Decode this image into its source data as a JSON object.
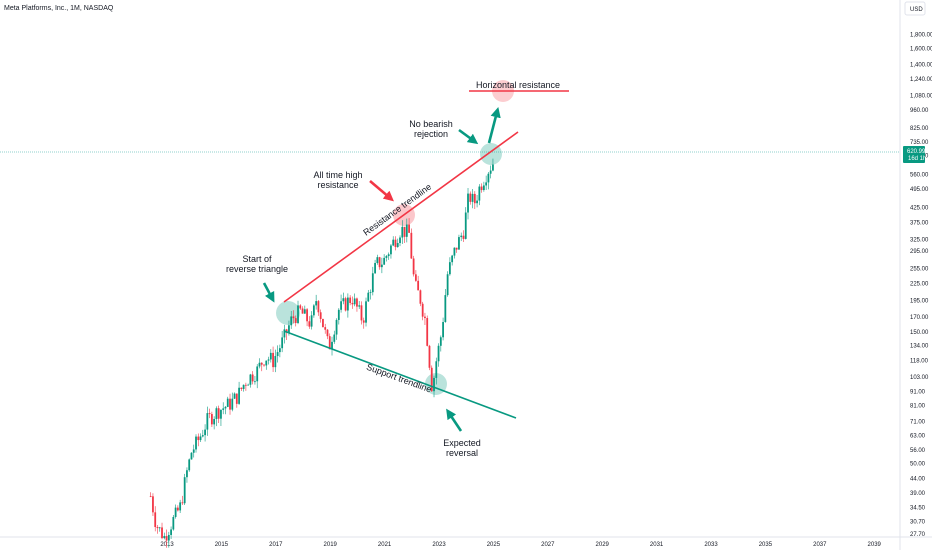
{
  "header": {
    "symbol": "Meta Platforms, Inc., 1M, NASDAQ",
    "currency": "USD"
  },
  "price_tag": {
    "price": "620.99",
    "time": "16d 1h"
  },
  "colors": {
    "up": "#089981",
    "down": "#f23645",
    "red_line": "#f23645",
    "green_line": "#089981",
    "arrow_green": "#089981",
    "arrow_red": "#f23645",
    "price_line": "#26a69a"
  },
  "chart_data": {
    "type": "candlestick",
    "scale": "log",
    "ylim": [
      27.7,
      2000
    ],
    "xlim": [
      2012.0,
      2039.5
    ],
    "x_ticks": [
      "2013",
      "2015",
      "2017",
      "2019",
      "2021",
      "2023",
      "2025",
      "2027",
      "2029",
      "2031",
      "2033",
      "2035",
      "2037",
      "2039"
    ],
    "y_ticks": [
      "1,800.00",
      "1,600.00",
      "1,400.00",
      "1,240.00",
      "1,080.00",
      "960.00",
      "825.00",
      "735.00",
      "655.00",
      "560.00",
      "495.00",
      "425.00",
      "375.00",
      "325.00",
      "295.00",
      "255.00",
      "225.00",
      "195.00",
      "170.00",
      "150.00",
      "134.00",
      "118.00",
      "103.00",
      "91.00",
      "81.00",
      "71.00",
      "63.00",
      "56.00",
      "50.00",
      "44.00",
      "39.00",
      "34.50",
      "30.70",
      "27.70"
    ],
    "anchors": [
      [
        2012.4,
        38
      ],
      [
        2012.6,
        30
      ],
      [
        2012.9,
        27
      ],
      [
        2013.5,
        35
      ],
      [
        2013.7,
        45
      ],
      [
        2013.9,
        55
      ],
      [
        2014.2,
        62
      ],
      [
        2014.5,
        72
      ],
      [
        2014.9,
        78
      ],
      [
        2015.3,
        82
      ],
      [
        2015.6,
        88
      ],
      [
        2015.9,
        100
      ],
      [
        2016.3,
        108
      ],
      [
        2016.6,
        122
      ],
      [
        2016.9,
        118
      ],
      [
        2017.3,
        142
      ],
      [
        2017.6,
        168
      ],
      [
        2017.9,
        178
      ],
      [
        2018.3,
        160
      ],
      [
        2018.5,
        200
      ],
      [
        2018.8,
        150
      ],
      [
        2018.95,
        131
      ],
      [
        2019.3,
        180
      ],
      [
        2019.8,
        200
      ],
      [
        2020.2,
        165
      ],
      [
        2020.4,
        205
      ],
      [
        2020.7,
        265
      ],
      [
        2020.95,
        270
      ],
      [
        2021.3,
        315
      ],
      [
        2021.6,
        355
      ],
      [
        2021.9,
        340
      ],
      [
        2022.1,
        222
      ],
      [
        2022.3,
        200
      ],
      [
        2022.5,
        165
      ],
      [
        2022.75,
        93
      ],
      [
        2022.9,
        118
      ],
      [
        2023.1,
        150
      ],
      [
        2023.3,
        240
      ],
      [
        2023.6,
        300
      ],
      [
        2023.9,
        350
      ],
      [
        2024.1,
        470
      ],
      [
        2024.3,
        440
      ],
      [
        2024.5,
        505
      ],
      [
        2024.8,
        580
      ],
      [
        2025.0,
        620
      ]
    ]
  },
  "annotations": {
    "horizontal_resistance": "Horizontal resistance",
    "no_bearish_1": "No bearish",
    "no_bearish_2": "rejection",
    "ath_1": "All time high",
    "ath_2": "resistance",
    "start_1": "Start of",
    "start_2": "reverse triangle",
    "resistance_trendline": "Resistance trendline",
    "support_trendline": "Support trendline",
    "expected_1": "Expected",
    "expected_2": "reversal"
  }
}
